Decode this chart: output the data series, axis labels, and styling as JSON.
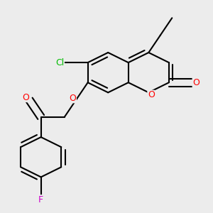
{
  "bg_color": "#ececec",
  "bond_color": "#000000",
  "bond_width": 1.5,
  "atom_colors": {
    "O": "#ff0000",
    "Cl": "#00bb00",
    "F": "#cc00cc"
  },
  "font_size": 9,
  "fig_size": [
    3.0,
    3.0
  ],
  "dpi": 100
}
